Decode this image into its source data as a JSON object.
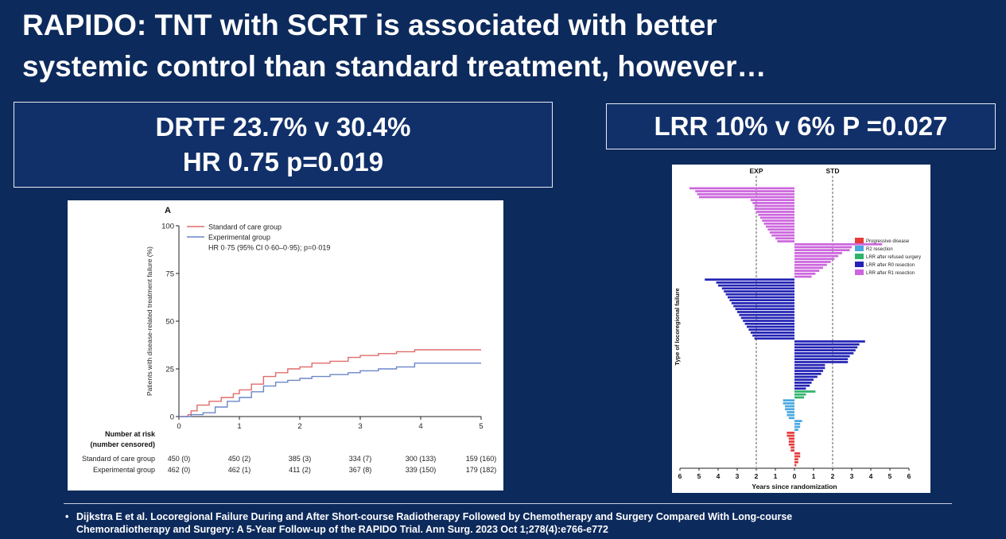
{
  "slide": {
    "title_line1": "RAPIDO: TNT with SCRT is associated with better",
    "title_line2": "systemic control than standard treatment, however…",
    "stat_left_line1": "DRTF 23.7% v 30.4%",
    "stat_left_line2": "HR 0.75 p=0.019",
    "stat_right": "LRR 10% v 6% P =0.027",
    "footnote_bullet": "•",
    "footnote_line1": "Dijkstra E et al. Locoregional Failure During and After Short-course Radiotherapy Followed by Chemotherapy and Surgery Compared With Long-course",
    "footnote_line2": "Chemoradiotherapy and Surgery: A 5-Year Follow-up of the RAPIDO Trial. Ann Surg. 2023 Oct 1;278(4):e766-e772"
  },
  "chart_data": [
    {
      "type": "line",
      "panel_label": "A",
      "xlabel": "",
      "ylabel": "Patients with disease-related treatment failure (%)",
      "xlim": [
        0,
        5
      ],
      "ylim": [
        0,
        100
      ],
      "xticks": [
        "0",
        "1",
        "2",
        "3",
        "4",
        "5"
      ],
      "yticks": [
        "0",
        "25",
        "50",
        "75",
        "100"
      ],
      "legend": {
        "placement": "top-left",
        "entries": [
          "Standard of care group",
          "Experimental group"
        ],
        "annotation": "HR 0·75 (95% CI 0·60–0·95); p=0·019"
      },
      "colors": {
        "standard": "#e06b6b",
        "experimental": "#6b86c8"
      },
      "series": [
        {
          "name": "Standard of care group",
          "x": [
            0,
            0.15,
            0.2,
            0.3,
            0.5,
            0.7,
            0.9,
            1.0,
            1.2,
            1.4,
            1.6,
            1.8,
            2.0,
            2.2,
            2.5,
            2.8,
            3.0,
            3.3,
            3.6,
            3.9,
            4.2,
            4.5,
            5.0
          ],
          "y": [
            0,
            1,
            3,
            6,
            8,
            10,
            12,
            14,
            17,
            21,
            23,
            25,
            26,
            28,
            29,
            31,
            32,
            33,
            34,
            35,
            35,
            35,
            35
          ]
        },
        {
          "name": "Experimental group",
          "x": [
            0,
            0.2,
            0.4,
            0.6,
            0.8,
            1.0,
            1.2,
            1.4,
            1.6,
            1.8,
            2.0,
            2.2,
            2.5,
            2.8,
            3.0,
            3.3,
            3.6,
            3.9,
            4.2,
            4.5,
            5.0
          ],
          "y": [
            0,
            1,
            2,
            5,
            8,
            10,
            13,
            16,
            18,
            19,
            20,
            21,
            22,
            23,
            24,
            25,
            26,
            28,
            28,
            28,
            28
          ]
        }
      ],
      "risk_table": {
        "header_line1": "Number at risk",
        "header_line2": "(number censored)",
        "rows": [
          {
            "label": "Standard of care group",
            "values": [
              "450 (0)",
              "450 (2)",
              "385 (3)",
              "334 (7)",
              "300 (133)",
              "159 (160)"
            ]
          },
          {
            "label": "Experimental group",
            "values": [
              "462 (0)",
              "462 (1)",
              "411 (2)",
              "367 (8)",
              "339 (150)",
              "179 (182)"
            ]
          }
        ]
      }
    },
    {
      "type": "bar",
      "orientation": "horizontal-swimmer",
      "xlabel": "Years since randomization",
      "ylabel": "Type of locoregional failure",
      "xlim": [
        -6,
        6
      ],
      "xticks": [
        "6",
        "5",
        "4",
        "3",
        "2",
        "1",
        "0",
        "1",
        "2",
        "3",
        "4",
        "5",
        "6"
      ],
      "reference_lines": [
        {
          "label": "EXP",
          "x": -2
        },
        {
          "label": "STD",
          "x": 2
        }
      ],
      "legend": {
        "placement": "top-right",
        "entries": [
          {
            "label": "Progressive disease",
            "color": "#e63b3b"
          },
          {
            "label": "R2 resection",
            "color": "#4aa8e0"
          },
          {
            "label": "LRR after refused surgery",
            "color": "#2fb36a"
          },
          {
            "label": "LRR after R0 resection",
            "color": "#2323b5"
          },
          {
            "label": "LRR after R1 resection",
            "color": "#cc66dd"
          }
        ]
      },
      "series": [
        {
          "name": "LRR after R1 resection",
          "values": [
            -5.5,
            -5.2,
            -5.1,
            -5.0,
            -2.3,
            -2.2,
            -2.1,
            -2.1,
            -2.0,
            -1.9,
            -1.8,
            -1.7,
            -1.6,
            -1.5,
            -1.4,
            -1.3,
            -1.2,
            -1.0,
            -0.9,
            4.6,
            3.0,
            2.9,
            2.5,
            2.3,
            2.1,
            1.9,
            1.7,
            1.5,
            1.3,
            1.1,
            0.9
          ]
        },
        {
          "name": "LRR after R0 resection",
          "values": [
            -4.7,
            -4.1,
            -4.0,
            -3.8,
            -3.7,
            -3.6,
            -3.5,
            -3.4,
            -3.3,
            -3.2,
            -3.1,
            -3.0,
            -2.9,
            -2.8,
            -2.7,
            -2.6,
            -2.5,
            -2.4,
            -2.3,
            -2.2,
            -2.1,
            3.7,
            3.4,
            3.3,
            3.2,
            3.1,
            2.9,
            2.8,
            2.8,
            1.6,
            1.6,
            1.5,
            1.4,
            1.2,
            1.0,
            0.9,
            0.8,
            0.6
          ]
        },
        {
          "name": "LRR after refused surgery",
          "values": [
            1.1,
            0.6,
            0.5
          ]
        },
        {
          "name": "R2 resection",
          "values": [
            -0.6,
            -0.6,
            -0.5,
            -0.5,
            -0.4,
            -0.4,
            -0.3,
            0.4,
            0.3,
            0.3,
            0.2
          ]
        },
        {
          "name": "Progressive disease",
          "values": [
            -0.4,
            -0.4,
            -0.3,
            -0.3,
            -0.3,
            -0.2,
            -0.2,
            0.3,
            0.3,
            0.2,
            0.2,
            0.1
          ]
        }
      ]
    }
  ]
}
